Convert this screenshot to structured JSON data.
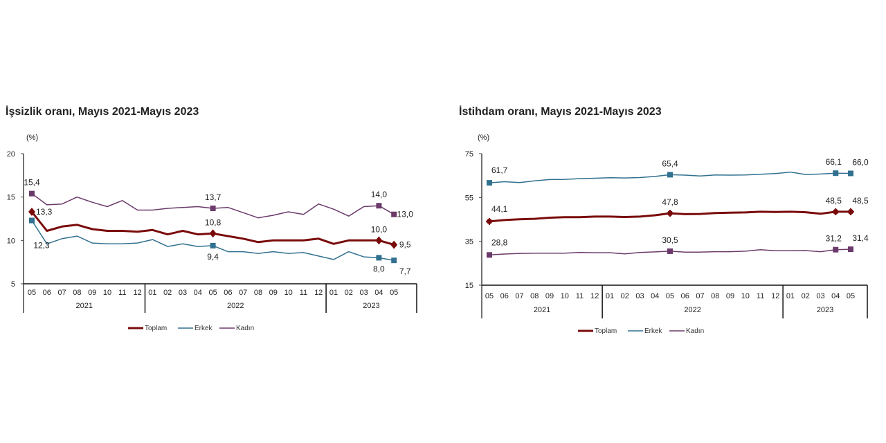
{
  "chart_data": [
    {
      "type": "line",
      "title": "İşsizlik oranı, Mayıs 2021-Mayıs 2023",
      "ylabel": "(%)",
      "ylim": [
        5,
        20
      ],
      "yticks": [
        "20",
        "15",
        "10",
        "5"
      ],
      "categories": [
        "05",
        "06",
        "07",
        "08",
        "09",
        "10",
        "11",
        "12",
        "01",
        "02",
        "03",
        "04",
        "05",
        "06",
        "07",
        "08",
        "09",
        "10",
        "11",
        "12",
        "01",
        "02",
        "03",
        "04",
        "05"
      ],
      "years": [
        {
          "label": "2021",
          "months": 8
        },
        {
          "label": "2022",
          "months": 12
        },
        {
          "label": "2023",
          "months": 5
        }
      ],
      "legend": "bottom",
      "series": [
        {
          "name": "Toplam",
          "color": "#7a0a0a",
          "marker": "diamond",
          "values": [
            13.3,
            11.1,
            11.6,
            11.8,
            11.3,
            11.1,
            11.1,
            11.0,
            11.2,
            10.7,
            11.1,
            10.7,
            10.8,
            10.5,
            10.2,
            9.8,
            10.0,
            10.0,
            10.0,
            10.2,
            9.6,
            10.0,
            10.0,
            10.0,
            9.5
          ],
          "labels": [
            {
              "i": 0,
              "text": "13,3"
            },
            {
              "i": 12,
              "text": "10,8"
            },
            {
              "i": 23,
              "text": "10,0"
            },
            {
              "i": 24,
              "text": "9,5"
            }
          ]
        },
        {
          "name": "Erkek",
          "color": "#31708f",
          "marker": "square",
          "values": [
            12.3,
            9.6,
            10.2,
            10.5,
            9.7,
            9.6,
            9.6,
            9.7,
            10.1,
            9.3,
            9.6,
            9.3,
            9.4,
            8.7,
            8.7,
            8.5,
            8.7,
            8.5,
            8.6,
            8.2,
            7.8,
            8.7,
            8.1,
            8.0,
            7.7
          ],
          "labels": [
            {
              "i": 0,
              "text": "12,3"
            },
            {
              "i": 12,
              "text": "9,4"
            },
            {
              "i": 23,
              "text": "8,0"
            },
            {
              "i": 24,
              "text": "7,7"
            }
          ]
        },
        {
          "name": "Kadın",
          "color": "#6b3a6b",
          "marker": "square",
          "values": [
            15.4,
            14.1,
            14.2,
            15.0,
            14.4,
            13.9,
            14.6,
            13.5,
            13.5,
            13.7,
            13.8,
            13.9,
            13.7,
            13.8,
            13.2,
            12.6,
            12.9,
            13.3,
            13.0,
            14.2,
            13.6,
            12.8,
            13.9,
            14.0,
            13.0
          ],
          "labels": [
            {
              "i": 0,
              "text": "15,4"
            },
            {
              "i": 12,
              "text": "13,7"
            },
            {
              "i": 23,
              "text": "14,0"
            },
            {
              "i": 24,
              "text": "13,0"
            }
          ]
        }
      ]
    },
    {
      "type": "line",
      "title": "İstihdam oranı, Mayıs 2021-Mayıs 2023",
      "ylabel": "(%)",
      "ylim": [
        15,
        75
      ],
      "yticks": [
        "75",
        "55",
        "35",
        "15"
      ],
      "categories": [
        "05",
        "06",
        "07",
        "08",
        "09",
        "10",
        "11",
        "12",
        "01",
        "02",
        "03",
        "04",
        "05",
        "06",
        "07",
        "08",
        "09",
        "10",
        "11",
        "12",
        "01",
        "02",
        "03",
        "04",
        "05"
      ],
      "years": [
        {
          "label": "2021",
          "months": 8
        },
        {
          "label": "2022",
          "months": 12
        },
        {
          "label": "2023",
          "months": 5
        }
      ],
      "legend": "bottom",
      "series": [
        {
          "name": "Toplam",
          "color": "#7a0a0a",
          "marker": "plus",
          "values": [
            44.1,
            44.7,
            45.1,
            45.3,
            45.8,
            46.0,
            46.0,
            46.3,
            46.3,
            46.1,
            46.3,
            46.9,
            47.8,
            47.4,
            47.5,
            47.9,
            48.1,
            48.2,
            48.5,
            48.4,
            48.5,
            48.3,
            47.6,
            48.5,
            48.5
          ],
          "labels": [
            {
              "i": 0,
              "text": "44,1"
            },
            {
              "i": 12,
              "text": "47,8"
            },
            {
              "i": 23,
              "text": "48,5"
            },
            {
              "i": 24,
              "text": "48,5"
            }
          ]
        },
        {
          "name": "Erkek",
          "color": "#31708f",
          "marker": "square",
          "values": [
            61.7,
            62.2,
            61.8,
            62.6,
            63.2,
            63.3,
            63.6,
            63.8,
            64.0,
            63.9,
            64.1,
            64.6,
            65.4,
            65.2,
            64.8,
            65.3,
            65.2,
            65.3,
            65.6,
            65.9,
            66.6,
            65.5,
            65.7,
            66.1,
            66.0
          ],
          "labels": [
            {
              "i": 0,
              "text": "61,7"
            },
            {
              "i": 12,
              "text": "65,4"
            },
            {
              "i": 23,
              "text": "66,1"
            },
            {
              "i": 24,
              "text": "66,0"
            }
          ]
        },
        {
          "name": "Kadın",
          "color": "#6b3a6b",
          "marker": "square",
          "values": [
            28.8,
            29.2,
            29.5,
            29.6,
            29.6,
            29.6,
            29.9,
            29.8,
            29.8,
            29.3,
            29.9,
            30.2,
            30.5,
            30.1,
            30.1,
            30.3,
            30.3,
            30.5,
            31.2,
            30.7,
            30.7,
            30.8,
            30.3,
            31.2,
            31.4
          ],
          "labels": [
            {
              "i": 0,
              "text": "28,8"
            },
            {
              "i": 12,
              "text": "30,5"
            },
            {
              "i": 23,
              "text": "31,2"
            },
            {
              "i": 24,
              "text": "31,4"
            }
          ]
        }
      ]
    }
  ]
}
